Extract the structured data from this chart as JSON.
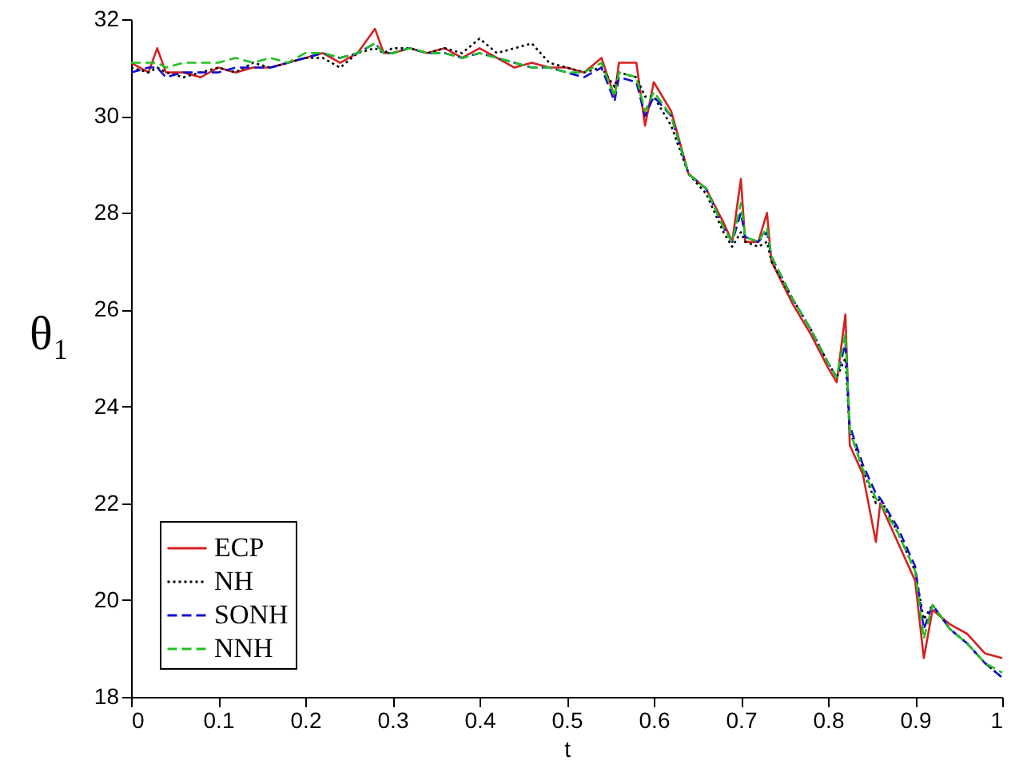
{
  "chart_data": {
    "type": "line",
    "xlabel": "t",
    "ylabel": "θ₁",
    "x": [
      0,
      0.02,
      0.03,
      0.04,
      0.06,
      0.08,
      0.1,
      0.12,
      0.14,
      0.16,
      0.18,
      0.2,
      0.22,
      0.24,
      0.26,
      0.28,
      0.29,
      0.3,
      0.32,
      0.34,
      0.36,
      0.38,
      0.4,
      0.42,
      0.44,
      0.46,
      0.48,
      0.5,
      0.52,
      0.54,
      0.555,
      0.56,
      0.58,
      0.59,
      0.6,
      0.62,
      0.64,
      0.66,
      0.68,
      0.69,
      0.7,
      0.705,
      0.72,
      0.73,
      0.735,
      0.76,
      0.78,
      0.8,
      0.81,
      0.82,
      0.825,
      0.84,
      0.855,
      0.86,
      0.88,
      0.9,
      0.91,
      0.92,
      0.94,
      0.96,
      0.98,
      1.0
    ],
    "series": [
      {
        "name": "ECP",
        "color": "#d62020",
        "line_style": "solid",
        "values": [
          31.1,
          30.9,
          31.4,
          30.9,
          30.9,
          30.8,
          31.0,
          30.9,
          31.0,
          31.0,
          31.1,
          31.2,
          31.3,
          31.1,
          31.3,
          31.8,
          31.3,
          31.3,
          31.4,
          31.3,
          31.4,
          31.2,
          31.4,
          31.2,
          31.0,
          31.1,
          31.0,
          31.0,
          30.9,
          31.2,
          30.4,
          31.1,
          31.1,
          29.8,
          30.7,
          30.1,
          28.8,
          28.5,
          27.8,
          27.4,
          28.7,
          27.4,
          27.4,
          28.0,
          27.0,
          26.1,
          25.5,
          24.8,
          24.5,
          25.9,
          23.2,
          22.6,
          21.2,
          22.0,
          21.2,
          20.4,
          18.8,
          19.8,
          19.5,
          19.3,
          18.9,
          18.8
        ]
      },
      {
        "name": "NH",
        "color": "#000000",
        "line_style": "dotted",
        "values": [
          31.0,
          30.9,
          31.0,
          30.9,
          30.8,
          30.9,
          31.0,
          30.9,
          31.1,
          31.0,
          31.1,
          31.2,
          31.2,
          31.0,
          31.3,
          31.4,
          31.3,
          31.4,
          31.4,
          31.3,
          31.4,
          31.3,
          31.6,
          31.3,
          31.4,
          31.5,
          31.1,
          31.0,
          30.9,
          31.0,
          30.6,
          30.9,
          30.8,
          30.4,
          30.4,
          29.8,
          28.8,
          28.4,
          27.6,
          27.3,
          27.6,
          27.4,
          27.3,
          27.4,
          27.0,
          26.2,
          25.6,
          24.9,
          24.6,
          25.0,
          23.5,
          22.7,
          22.0,
          22.1,
          21.4,
          20.6,
          19.6,
          19.9,
          19.4,
          19.1,
          18.7,
          18.4
        ]
      },
      {
        "name": "SONH",
        "color": "#1010d0",
        "line_style": "dashed",
        "values": [
          30.9,
          31.0,
          31.0,
          30.8,
          30.9,
          30.9,
          30.9,
          31.0,
          31.0,
          31.0,
          31.1,
          31.2,
          31.3,
          31.2,
          31.3,
          31.5,
          31.3,
          31.3,
          31.4,
          31.3,
          31.3,
          31.2,
          31.3,
          31.2,
          31.1,
          31.0,
          31.0,
          30.9,
          30.8,
          31.0,
          30.3,
          30.8,
          30.7,
          30.0,
          30.4,
          30.0,
          28.8,
          28.5,
          27.7,
          27.4,
          28.0,
          27.5,
          27.4,
          27.6,
          27.1,
          26.2,
          25.6,
          24.9,
          24.6,
          25.3,
          23.6,
          22.8,
          22.2,
          22.1,
          21.5,
          20.7,
          19.4,
          19.9,
          19.4,
          19.1,
          18.7,
          18.4
        ]
      },
      {
        "name": "NNH",
        "color": "#20c020",
        "line_style": "dashed",
        "values": [
          31.1,
          31.1,
          31.1,
          31.0,
          31.1,
          31.1,
          31.1,
          31.2,
          31.1,
          31.2,
          31.1,
          31.3,
          31.3,
          31.2,
          31.3,
          31.5,
          31.3,
          31.3,
          31.4,
          31.3,
          31.3,
          31.2,
          31.3,
          31.2,
          31.1,
          31.0,
          31.0,
          30.9,
          30.9,
          31.1,
          30.4,
          30.9,
          30.8,
          30.1,
          30.5,
          30.0,
          28.8,
          28.5,
          27.7,
          27.4,
          28.2,
          27.5,
          27.4,
          27.7,
          27.1,
          26.2,
          25.6,
          24.9,
          24.6,
          25.5,
          23.5,
          22.7,
          22.1,
          22.0,
          21.4,
          20.6,
          19.2,
          19.9,
          19.4,
          19.1,
          18.7,
          18.5
        ]
      }
    ],
    "xlim": [
      0,
      1
    ],
    "xticks": [
      0,
      0.1,
      0.2,
      0.3,
      0.4,
      0.5,
      0.6,
      0.7,
      0.8,
      0.9,
      1
    ],
    "ylim": [
      18,
      32
    ],
    "yticks": [
      18,
      20,
      22,
      24,
      26,
      28,
      30,
      32
    ],
    "grid": false,
    "legend": "bottom left"
  }
}
